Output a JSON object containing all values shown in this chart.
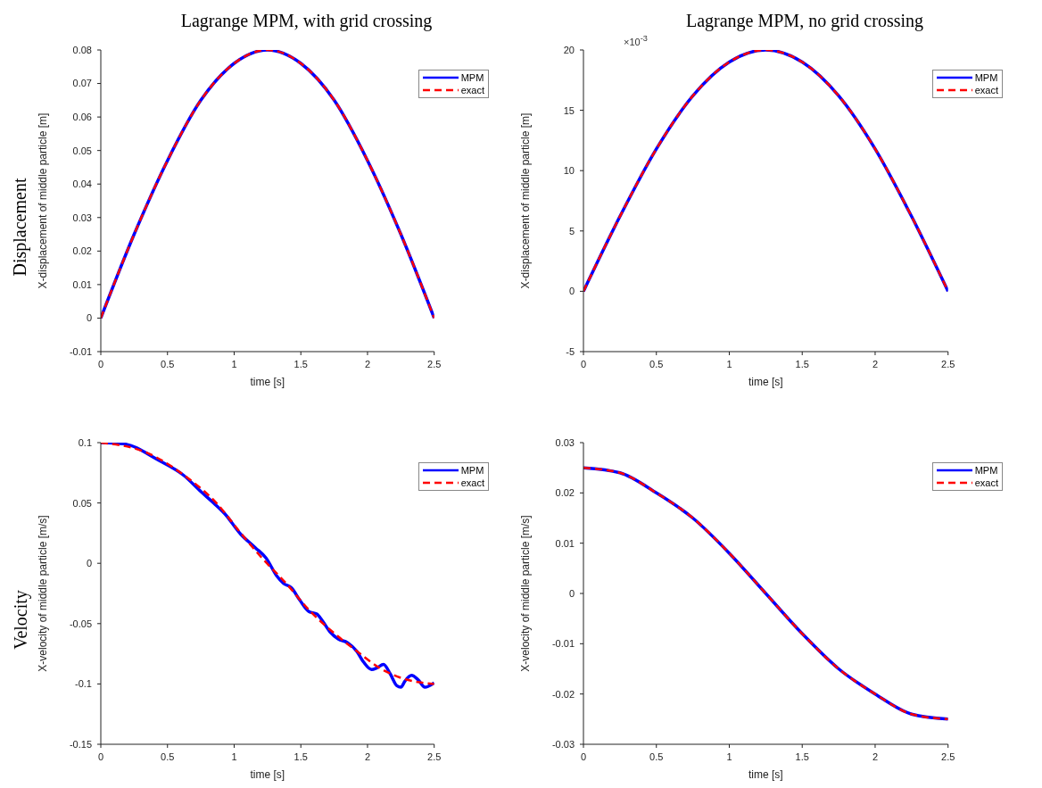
{
  "chart_data": [
    {
      "type": "line",
      "title": "Lagrange MPM, with grid crossing",
      "xlabel": "time [s]",
      "ylabel": "X-displacement of middle particle [m]",
      "annotations": [
        "Displacement"
      ],
      "x": [
        0,
        0.25,
        0.5,
        0.75,
        1,
        1.25,
        1.5,
        1.75,
        2,
        2.25,
        2.5
      ],
      "series": [
        {
          "name": "MPM",
          "color": "#0000ff",
          "line_style": "solid",
          "values": [
            0,
            0.025,
            0.047,
            0.065,
            0.076,
            0.08,
            0.076,
            0.065,
            0.047,
            0.025,
            0
          ]
        },
        {
          "name": "exact",
          "color": "#ff0000",
          "line_style": "dashed",
          "values": [
            0,
            0.025,
            0.047,
            0.065,
            0.076,
            0.08,
            0.076,
            0.065,
            0.047,
            0.025,
            0
          ]
        }
      ],
      "xlim": [
        0,
        2.5
      ],
      "xticks": [
        0,
        0.5,
        1,
        1.5,
        2,
        2.5
      ],
      "ylim": [
        -0.01,
        0.08
      ],
      "yticks": [
        -0.01,
        0,
        0.01,
        0.02,
        0.03,
        0.04,
        0.05,
        0.06,
        0.07,
        0.08
      ],
      "grid": false,
      "legend": "top right"
    },
    {
      "type": "line",
      "title": "Lagrange MPM, no grid crossing",
      "xlabel": "time [s]",
      "ylabel": "X-displacement of middle particle [m]",
      "annotations": [
        "×10$^{-3}$"
      ],
      "x": [
        0,
        0.25,
        0.5,
        0.75,
        1,
        1.25,
        1.5,
        1.75,
        2,
        2.25,
        2.5
      ],
      "series": [
        {
          "name": "MPM",
          "color": "#0000ff",
          "line_style": "solid",
          "values": [
            0,
            6.2,
            11.8,
            16.2,
            19,
            20,
            19,
            16.2,
            11.8,
            6.2,
            0
          ]
        },
        {
          "name": "exact",
          "color": "#ff0000",
          "line_style": "dashed",
          "values": [
            0,
            6.2,
            11.8,
            16.2,
            19,
            20,
            19,
            16.2,
            11.8,
            6.2,
            0
          ]
        }
      ],
      "xlim": [
        0,
        2.5
      ],
      "xticks": [
        0,
        0.5,
        1,
        1.5,
        2,
        2.5
      ],
      "ylim": [
        -5,
        20
      ],
      "yticks": [
        -5,
        0,
        5,
        10,
        15,
        20
      ],
      "grid": false,
      "legend": "top right"
    },
    {
      "type": "line",
      "xlabel": "time [s]",
      "ylabel": "X-velocity of middle particle [m/s]",
      "annotations": [
        "Velocity"
      ],
      "series": [
        {
          "name": "MPM",
          "color": "#0000ff",
          "line_style": "solid",
          "x": [
            0,
            0.17,
            0.44,
            0.62,
            0.75,
            0.85,
            0.93,
            1.05,
            1.16,
            1.24,
            1.32,
            1.37,
            1.43,
            1.49,
            1.56,
            1.62,
            1.66,
            1.72,
            1.78,
            1.85,
            1.92,
            1.97,
            2.03,
            2.07,
            2.12,
            2.17,
            2.22,
            2.25,
            2.28,
            2.33,
            2.38,
            2.43,
            2.5
          ],
          "values": [
            0.1,
            0.099,
            0.085,
            0.073,
            0.0595,
            0.0496,
            0.041,
            0.024,
            0.0128,
            0.0042,
            -0.0106,
            -0.0167,
            -0.0204,
            -0.0302,
            -0.04,
            -0.042,
            -0.0474,
            -0.057,
            -0.0627,
            -0.0658,
            -0.073,
            -0.0818,
            -0.088,
            -0.0867,
            -0.0838,
            -0.0916,
            -0.1015,
            -0.1027,
            -0.0978,
            -0.0929,
            -0.0966,
            -0.1027,
            -0.099
          ]
        },
        {
          "name": "exact",
          "color": "#ff0000",
          "line_style": "dashed",
          "x": [
            0,
            0.35,
            0.64,
            0.87,
            1.04,
            1.21,
            1.39,
            1.57,
            1.74,
            1.94,
            2.09,
            2.26,
            2.5
          ],
          "values": [
            0.1,
            0.0914,
            0.0717,
            0.0496,
            0.0263,
            0.0042,
            -0.0167,
            -0.0397,
            -0.057,
            -0.0745,
            -0.0867,
            -0.0953,
            -0.1
          ]
        }
      ],
      "xlim": [
        0,
        2.5
      ],
      "xticks": [
        0,
        0.5,
        1,
        1.5,
        2,
        2.5
      ],
      "ylim": [
        -0.15,
        0.1
      ],
      "yticks": [
        -0.15,
        -0.1,
        -0.05,
        0,
        0.05,
        0.1
      ],
      "grid": false,
      "legend": "top right"
    },
    {
      "type": "line",
      "xlabel": "time [s]",
      "ylabel": "X-velocity of middle particle [m/s]",
      "x": [
        0,
        0.25,
        0.5,
        0.75,
        1,
        1.25,
        1.5,
        1.75,
        2,
        2.25,
        2.5
      ],
      "series": [
        {
          "name": "MPM",
          "color": "#0000ff",
          "line_style": "solid",
          "values": [
            0.025,
            0.024,
            0.02,
            0.015,
            0.008,
            0,
            -0.008,
            -0.015,
            -0.02,
            -0.024,
            -0.025
          ]
        },
        {
          "name": "exact",
          "color": "#ff0000",
          "line_style": "dashed",
          "values": [
            0.025,
            0.024,
            0.02,
            0.015,
            0.008,
            0,
            -0.008,
            -0.015,
            -0.02,
            -0.024,
            -0.025
          ]
        }
      ],
      "xlim": [
        0,
        2.5
      ],
      "xticks": [
        0,
        0.5,
        1,
        1.5,
        2,
        2.5
      ],
      "ylim": [
        -0.03,
        0.03
      ],
      "yticks": [
        -0.03,
        -0.02,
        -0.01,
        0,
        0.01,
        0.02,
        0.03
      ],
      "grid": false,
      "legend": "top right"
    }
  ]
}
